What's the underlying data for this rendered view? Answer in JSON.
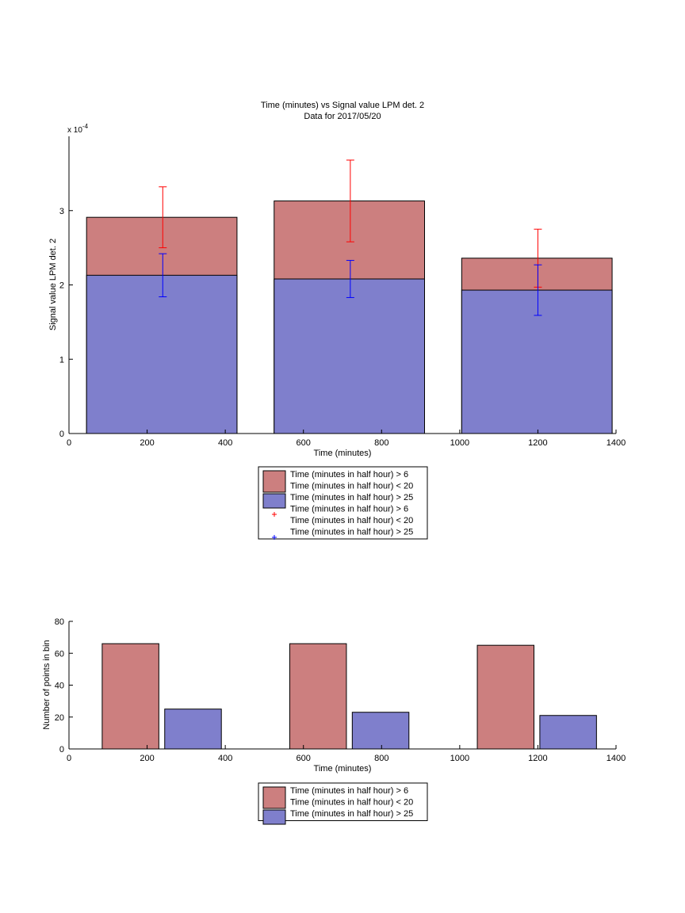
{
  "chart_data": [
    {
      "type": "bar",
      "title": "Time (minutes) vs Signal value LPM det. 2",
      "subtitle": "Data for 2017/05/20",
      "xlabel": "Time (minutes)",
      "ylabel": "Signal value LPM det. 2",
      "y_exponent_label": "x 10",
      "y_exponent": "-4",
      "xlim": [
        0,
        1400
      ],
      "ylim": [
        0,
        4
      ],
      "xticks": [
        0,
        200,
        400,
        600,
        800,
        1000,
        1200,
        1400
      ],
      "yticks": [
        0,
        1,
        2,
        3
      ],
      "y_scale": "x 10^-4",
      "bar_edges": [
        [
          45,
          430
        ],
        [
          525,
          910
        ],
        [
          1005,
          1390
        ]
      ],
      "series": [
        {
          "name": "Time (minutes in half hour) > 6\nTime (minutes in half hour) < 20",
          "color": "#cc7f7f",
          "values": [
            2.91,
            3.13,
            2.36
          ]
        },
        {
          "name": "Time (minutes in half hour) > 25",
          "color": "#7f7fcc",
          "values": [
            2.13,
            2.08,
            1.93
          ]
        }
      ],
      "errorbars": [
        {
          "name": "Time (minutes in half hour) > 6\nTime (minutes in half hour) < 20",
          "color": "#ff0000",
          "x": [
            240,
            720,
            1200
          ],
          "y": [
            2.91,
            3.13,
            2.36
          ],
          "err": [
            0.41,
            0.55,
            0.39
          ]
        },
        {
          "name": "Time (minutes in half hour) > 25",
          "color": "#0000ff",
          "x": [
            240,
            720,
            1200
          ],
          "y": [
            2.13,
            2.08,
            1.93
          ],
          "err": [
            0.29,
            0.25,
            0.34
          ]
        }
      ],
      "legend": {
        "placement": "below",
        "entries": [
          {
            "kind": "patch",
            "color": "#cc7f7f",
            "lines": [
              "Time (minutes in half hour) > 6",
              "Time (minutes in half hour) < 20"
            ]
          },
          {
            "kind": "patch",
            "color": "#7f7fcc",
            "lines": [
              "Time (minutes in half hour) > 25"
            ]
          },
          {
            "kind": "marker",
            "color": "#ff0000",
            "lines": [
              "Time (minutes in half hour) > 6",
              "Time (minutes in half hour) < 20"
            ]
          },
          {
            "kind": "marker",
            "color": "#0000ff",
            "lines": [
              "Time (minutes in half hour) > 25"
            ]
          }
        ]
      }
    },
    {
      "type": "bar",
      "title": "",
      "xlabel": "Time (minutes)",
      "ylabel": "Number of points in bin",
      "xlim": [
        0,
        1400
      ],
      "ylim": [
        0,
        80
      ],
      "xticks": [
        0,
        200,
        400,
        600,
        800,
        1000,
        1200,
        1400
      ],
      "yticks": [
        0,
        20,
        40,
        60,
        80
      ],
      "bars": [
        {
          "series": 0,
          "x0": 85,
          "x1": 230,
          "value": 66
        },
        {
          "series": 1,
          "x0": 245,
          "x1": 390,
          "value": 25
        },
        {
          "series": 0,
          "x0": 565,
          "x1": 710,
          "value": 66
        },
        {
          "series": 1,
          "x0": 725,
          "x1": 870,
          "value": 23
        },
        {
          "series": 0,
          "x0": 1045,
          "x1": 1190,
          "value": 65
        },
        {
          "series": 1,
          "x0": 1205,
          "x1": 1350,
          "value": 21
        }
      ],
      "series": [
        {
          "name": "Time (minutes in half hour) > 6\nTime (minutes in half hour) < 20",
          "color": "#cc7f7f",
          "values": [
            66,
            66,
            65
          ]
        },
        {
          "name": "Time (minutes in half hour) > 25",
          "color": "#7f7fcc",
          "values": [
            25,
            23,
            21
          ]
        }
      ],
      "legend": {
        "placement": "below",
        "entries": [
          {
            "kind": "patch",
            "color": "#cc7f7f",
            "lines": [
              "Time (minutes in half hour) > 6",
              "Time (minutes in half hour) < 20"
            ]
          },
          {
            "kind": "patch",
            "color": "#7f7fcc",
            "lines": [
              "Time (minutes in half hour) > 25"
            ]
          }
        ]
      }
    }
  ]
}
